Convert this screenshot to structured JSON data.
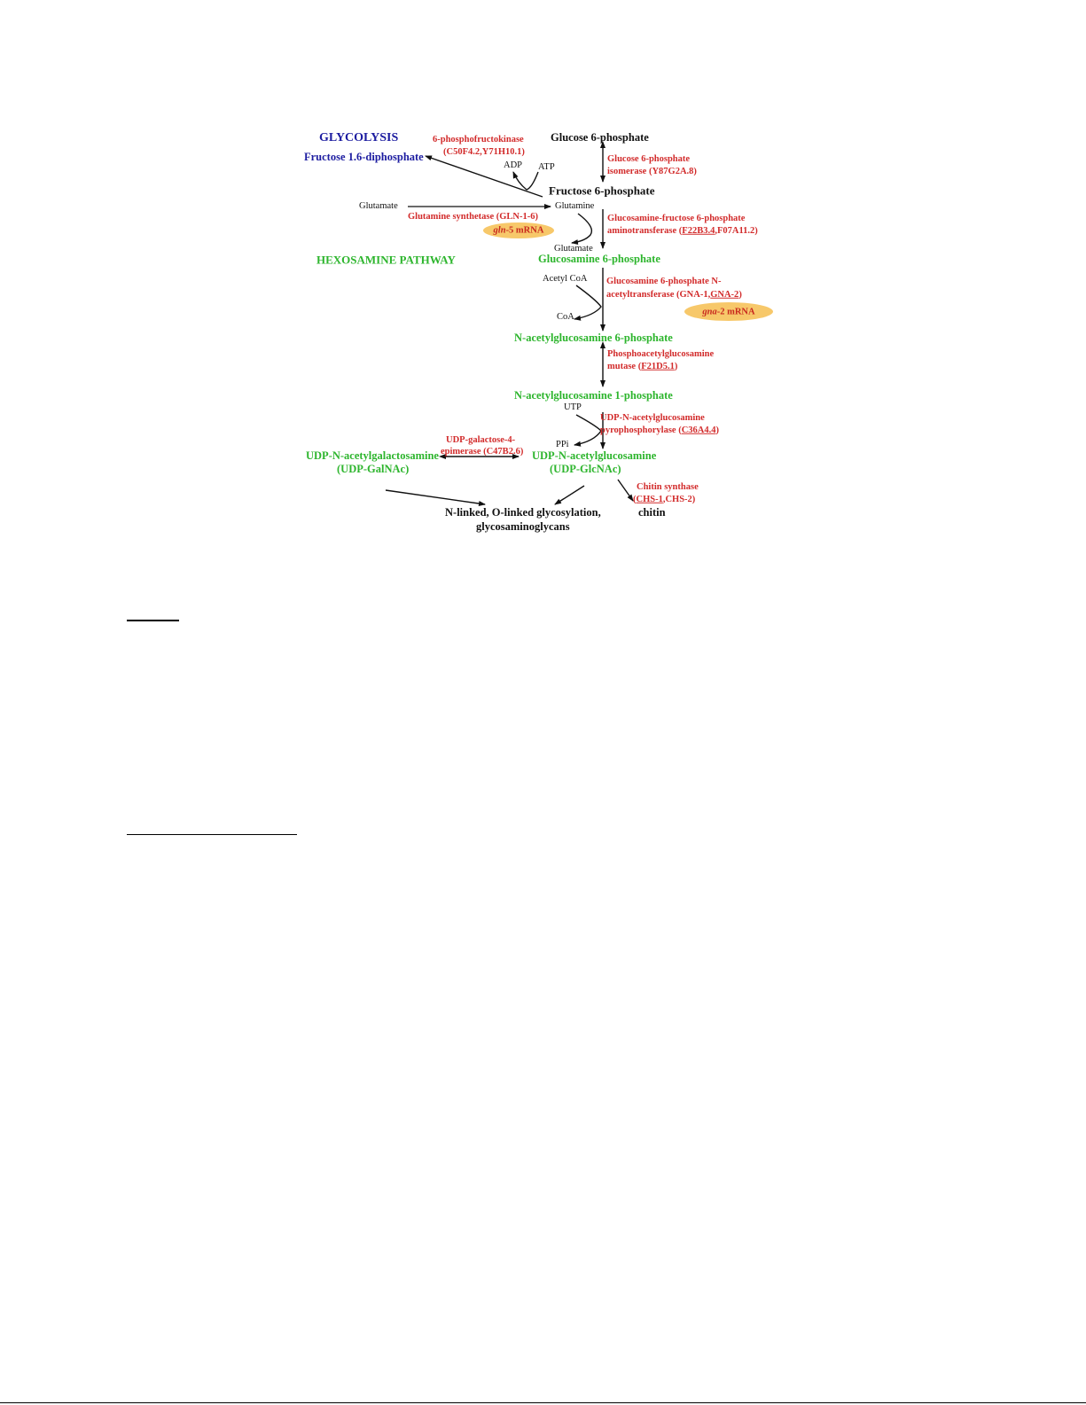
{
  "diagram": {
    "glycolysis_title": "GLYCOLYSIS",
    "hexosamine_title": "HEXOSAMINE PATHWAY",
    "compounds": {
      "fructose_16": "Fructose 1.6-diphosphate",
      "glucose_6p": "Glucose 6-phosphate",
      "fructose_6p": "Fructose 6-phosphate",
      "glucosamine_6p": "Glucosamine 6-phosphate",
      "nacglc_6p": "N-acetylglucosamine 6-phosphate",
      "nacglc_1p": "N-acetylglucosamine 1-phosphate",
      "udp_galnac_1": "UDP-N-acetylgalactosamine",
      "udp_galnac_2": "(UDP-GalNAc)",
      "udp_glcnac_1": "UDP-N-acetylglucosamine",
      "udp_glcnac_2": "(UDP-GlcNAc)",
      "glyco_1": "N-linked, O-linked glycosylation,",
      "glyco_2": "glycosaminoglycans",
      "chitin": "chitin"
    },
    "cofactors": {
      "adp": "ADP",
      "atp": "ATP",
      "glutamate_left": "Glutamate",
      "glutamine": "Glutamine",
      "glutamate_lower": "Glutamate",
      "acetyl_coa": "Acetyl CoA",
      "coa": "CoA",
      "utp": "UTP",
      "ppi": "PPi"
    },
    "enzymes": {
      "pfk_1": "6-phosphofructokinase",
      "pfk_2": "(C50F4.2,Y71H10.1)",
      "gpi_1": "Glucose 6-phosphate",
      "gpi_2": "isomerase (Y87G2A.8)",
      "gs": "Glutamine synthetase (GLN-1-6)",
      "gfat_1": "Glucosamine-fructose 6-phosphate",
      "gfat_2a": "aminotransferase (",
      "gfat_2u": "F22B3.4",
      "gfat_2b": ",F07A11.2)",
      "gna_1": "Glucosamine 6-phosphate N-",
      "gna_2a": "acetyltransferase (GNA-1,",
      "gna_2u": "GNA-2",
      "gna_2b": ")",
      "pagm_1": "Phosphoacetylglucosamine",
      "pagm_2a": "mutase (",
      "pagm_2u": "F21D5.1",
      "pagm_2b": ")",
      "uap_1": "UDP-N-acetylglucosamine",
      "uap_2a": "pyrophosphorylase (",
      "uap_2u": "C36A4.4",
      "uap_2b": ")",
      "gale_1": "UDP-galactose-4-",
      "gale_2": "epimerase (C47B2.6)",
      "chs_1": "Chitin synthase",
      "chs_2a": "(",
      "chs_2u": "CHS-1",
      "chs_2b": ",CHS-2)"
    },
    "mrna": {
      "gln_italic": "gln",
      "gln_rest": "-5 mRNA",
      "gna_italic": "gna",
      "gna_rest": "-2 mRNA"
    },
    "colors": {
      "glycolysis": "#1c1ca0",
      "hexosamine": "#2db52d",
      "enzyme": "#d22b2b",
      "mrna_highlight": "#f7c86a"
    }
  }
}
